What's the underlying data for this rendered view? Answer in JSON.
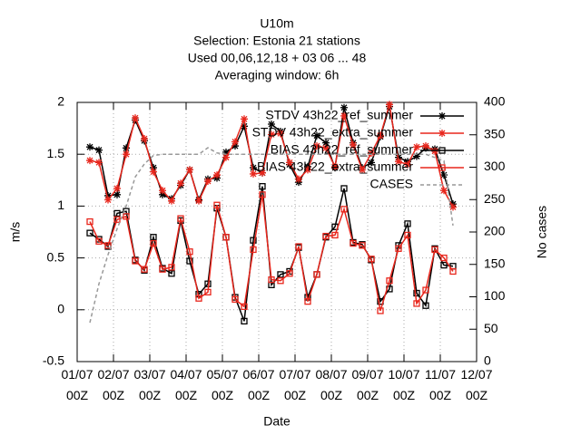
{
  "chart_data": {
    "type": "line",
    "title": [
      "U10m",
      "Selection: Estonia     21 stations",
      "Used  00,06,12,18  + 03 06 ... 48",
      "Averaging window:  6h"
    ],
    "xlabel": "Date",
    "ylabel": "m/s",
    "y2label": "No cases",
    "x": [
      0.35,
      0.6,
      0.85,
      1.1,
      1.35,
      1.6,
      1.85,
      2.1,
      2.35,
      2.6,
      2.85,
      3.1,
      3.35,
      3.6,
      3.85,
      4.1,
      4.35,
      4.6,
      4.85,
      5.1,
      5.35,
      5.6,
      5.85,
      6.1,
      6.35,
      6.6,
      6.85,
      7.1,
      7.35,
      7.6,
      7.85,
      8.1,
      8.35,
      8.6,
      8.85,
      9.1,
      9.35,
      9.6,
      9.85,
      10.1,
      10.35
    ],
    "xlim": [
      0,
      11
    ],
    "xticks": [
      {
        "value": 0,
        "label": "01/07 00Z"
      },
      {
        "value": 1,
        "label": "02/07 00Z"
      },
      {
        "value": 2,
        "label": "03/07 00Z"
      },
      {
        "value": 3,
        "label": "04/07 00Z"
      },
      {
        "value": 4,
        "label": "05/07 00Z"
      },
      {
        "value": 5,
        "label": "06/07 00Z"
      },
      {
        "value": 6,
        "label": "07/07 00Z"
      },
      {
        "value": 7,
        "label": "08/07 00Z"
      },
      {
        "value": 8,
        "label": "09/07 00Z"
      },
      {
        "value": 9,
        "label": "10/07 00Z"
      },
      {
        "value": 10,
        "label": "11/07 00Z"
      },
      {
        "value": 11,
        "label": "12/07 00Z"
      }
    ],
    "ylim": [
      -0.5,
      2
    ],
    "yticks": [
      {
        "value": -0.5,
        "label": "-0.5"
      },
      0,
      {
        "value": 0.5,
        "label": "0.5"
      },
      1,
      {
        "value": 1.5,
        "label": "1.5"
      },
      2
    ],
    "y2lim": [
      0,
      400
    ],
    "y2ticks": [
      0,
      50,
      100,
      150,
      200,
      250,
      300,
      350,
      400
    ],
    "grid": true,
    "legend": "top-right",
    "series": [
      {
        "name": "STDV 43h22_ref_summer",
        "color": "#000000",
        "marker": "star",
        "values": [
          1.57,
          1.54,
          1.1,
          1.11,
          1.56,
          1.83,
          1.63,
          1.37,
          1.11,
          1.07,
          1.2,
          1.35,
          1.06,
          1.26,
          1.27,
          1.52,
          1.58,
          1.77,
          1.37,
          1.32,
          1.79,
          1.72,
          1.4,
          1.23,
          1.38,
          1.68,
          1.61,
          1.37,
          1.95,
          1.61,
          1.37,
          1.42,
          1.67,
          1.96,
          1.47,
          1.43,
          1.48,
          1.56,
          1.55,
          1.3,
          1.02
        ]
      },
      {
        "name": "STDV 43h22_extra_summer",
        "color": "#e8261c",
        "marker": "star",
        "values": [
          1.44,
          1.42,
          1.06,
          1.17,
          1.5,
          1.85,
          1.65,
          1.33,
          1.15,
          1.05,
          1.22,
          1.35,
          1.05,
          1.24,
          1.3,
          1.47,
          1.62,
          1.84,
          1.31,
          1.32,
          1.69,
          1.7,
          1.42,
          1.26,
          1.35,
          1.58,
          1.56,
          1.38,
          1.87,
          1.59,
          1.35,
          1.51,
          1.68,
          1.98,
          1.43,
          1.4,
          1.57,
          1.58,
          1.53,
          1.15,
          0.99
        ]
      },
      {
        "name": "BIAS 43h22_ref_summer",
        "color": "#000000",
        "marker": "square",
        "values": [
          0.74,
          0.68,
          0.61,
          0.93,
          0.95,
          0.48,
          0.38,
          0.7,
          0.4,
          0.35,
          0.86,
          0.47,
          0.15,
          0.25,
          0.98,
          0.7,
          0.12,
          -0.11,
          0.67,
          1.19,
          0.24,
          0.34,
          0.37,
          0.6,
          0.12,
          0.34,
          0.7,
          0.8,
          1.17,
          0.65,
          0.63,
          0.48,
          0.08,
          0.2,
          0.62,
          0.83,
          0.16,
          0.04,
          0.59,
          0.43,
          0.42
        ]
      },
      {
        "name": "BIAS 43h22_extra_summer",
        "color": "#e8261c",
        "marker": "square",
        "values": [
          0.85,
          0.66,
          0.62,
          0.87,
          0.9,
          0.47,
          0.39,
          0.64,
          0.39,
          0.41,
          0.88,
          0.56,
          0.11,
          0.17,
          1.01,
          0.7,
          0.1,
          0.03,
          0.58,
          1.11,
          0.29,
          0.28,
          0.35,
          0.61,
          0.08,
          0.34,
          0.71,
          0.72,
          0.97,
          0.64,
          0.62,
          0.49,
          -0.01,
          0.28,
          0.59,
          0.72,
          0.06,
          0.19,
          0.58,
          0.5,
          0.37
        ]
      },
      {
        "name": "CASES",
        "color": "#999999",
        "marker": "none",
        "dashed": true,
        "axis": "y2",
        "values": [
          60,
          120,
          165,
          205,
          240,
          285,
          305,
          318,
          320,
          320,
          320,
          320,
          320,
          330,
          322,
          320,
          320,
          320,
          320,
          320,
          320,
          320,
          320,
          320,
          320,
          320,
          320,
          320,
          320,
          320,
          320,
          320,
          320,
          320,
          320,
          320,
          320,
          320,
          315,
          310,
          210
        ]
      }
    ]
  }
}
